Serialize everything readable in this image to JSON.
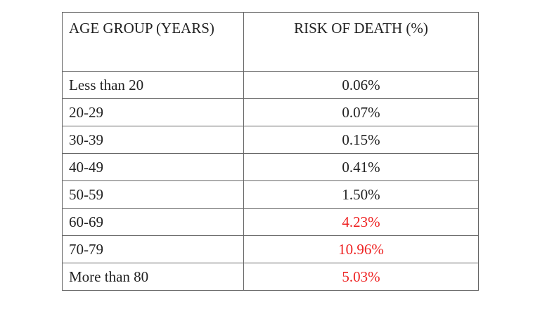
{
  "table": {
    "headers": {
      "age_group": "AGE GROUP (YEARS)",
      "risk_of_death": "RISK OF DEATH (%)"
    },
    "rows": [
      {
        "age_group": "Less than 20",
        "risk": "0.06%",
        "highlight": false
      },
      {
        "age_group": "20-29",
        "risk": "0.07%",
        "highlight": false
      },
      {
        "age_group": "30-39",
        "risk": "0.15%",
        "highlight": false
      },
      {
        "age_group": "40-49",
        "risk": "0.41%",
        "highlight": false
      },
      {
        "age_group": "50-59",
        "risk": "1.50%",
        "highlight": false
      },
      {
        "age_group": "60-69",
        "risk": "4.23%",
        "highlight": true
      },
      {
        "age_group": "70-79",
        "risk": "10.96%",
        "highlight": true
      },
      {
        "age_group": "More than 80",
        "risk": "5.03%",
        "highlight": true
      }
    ],
    "colors": {
      "text": "#222222",
      "highlight": "#ee2222",
      "border": "#666666"
    }
  }
}
